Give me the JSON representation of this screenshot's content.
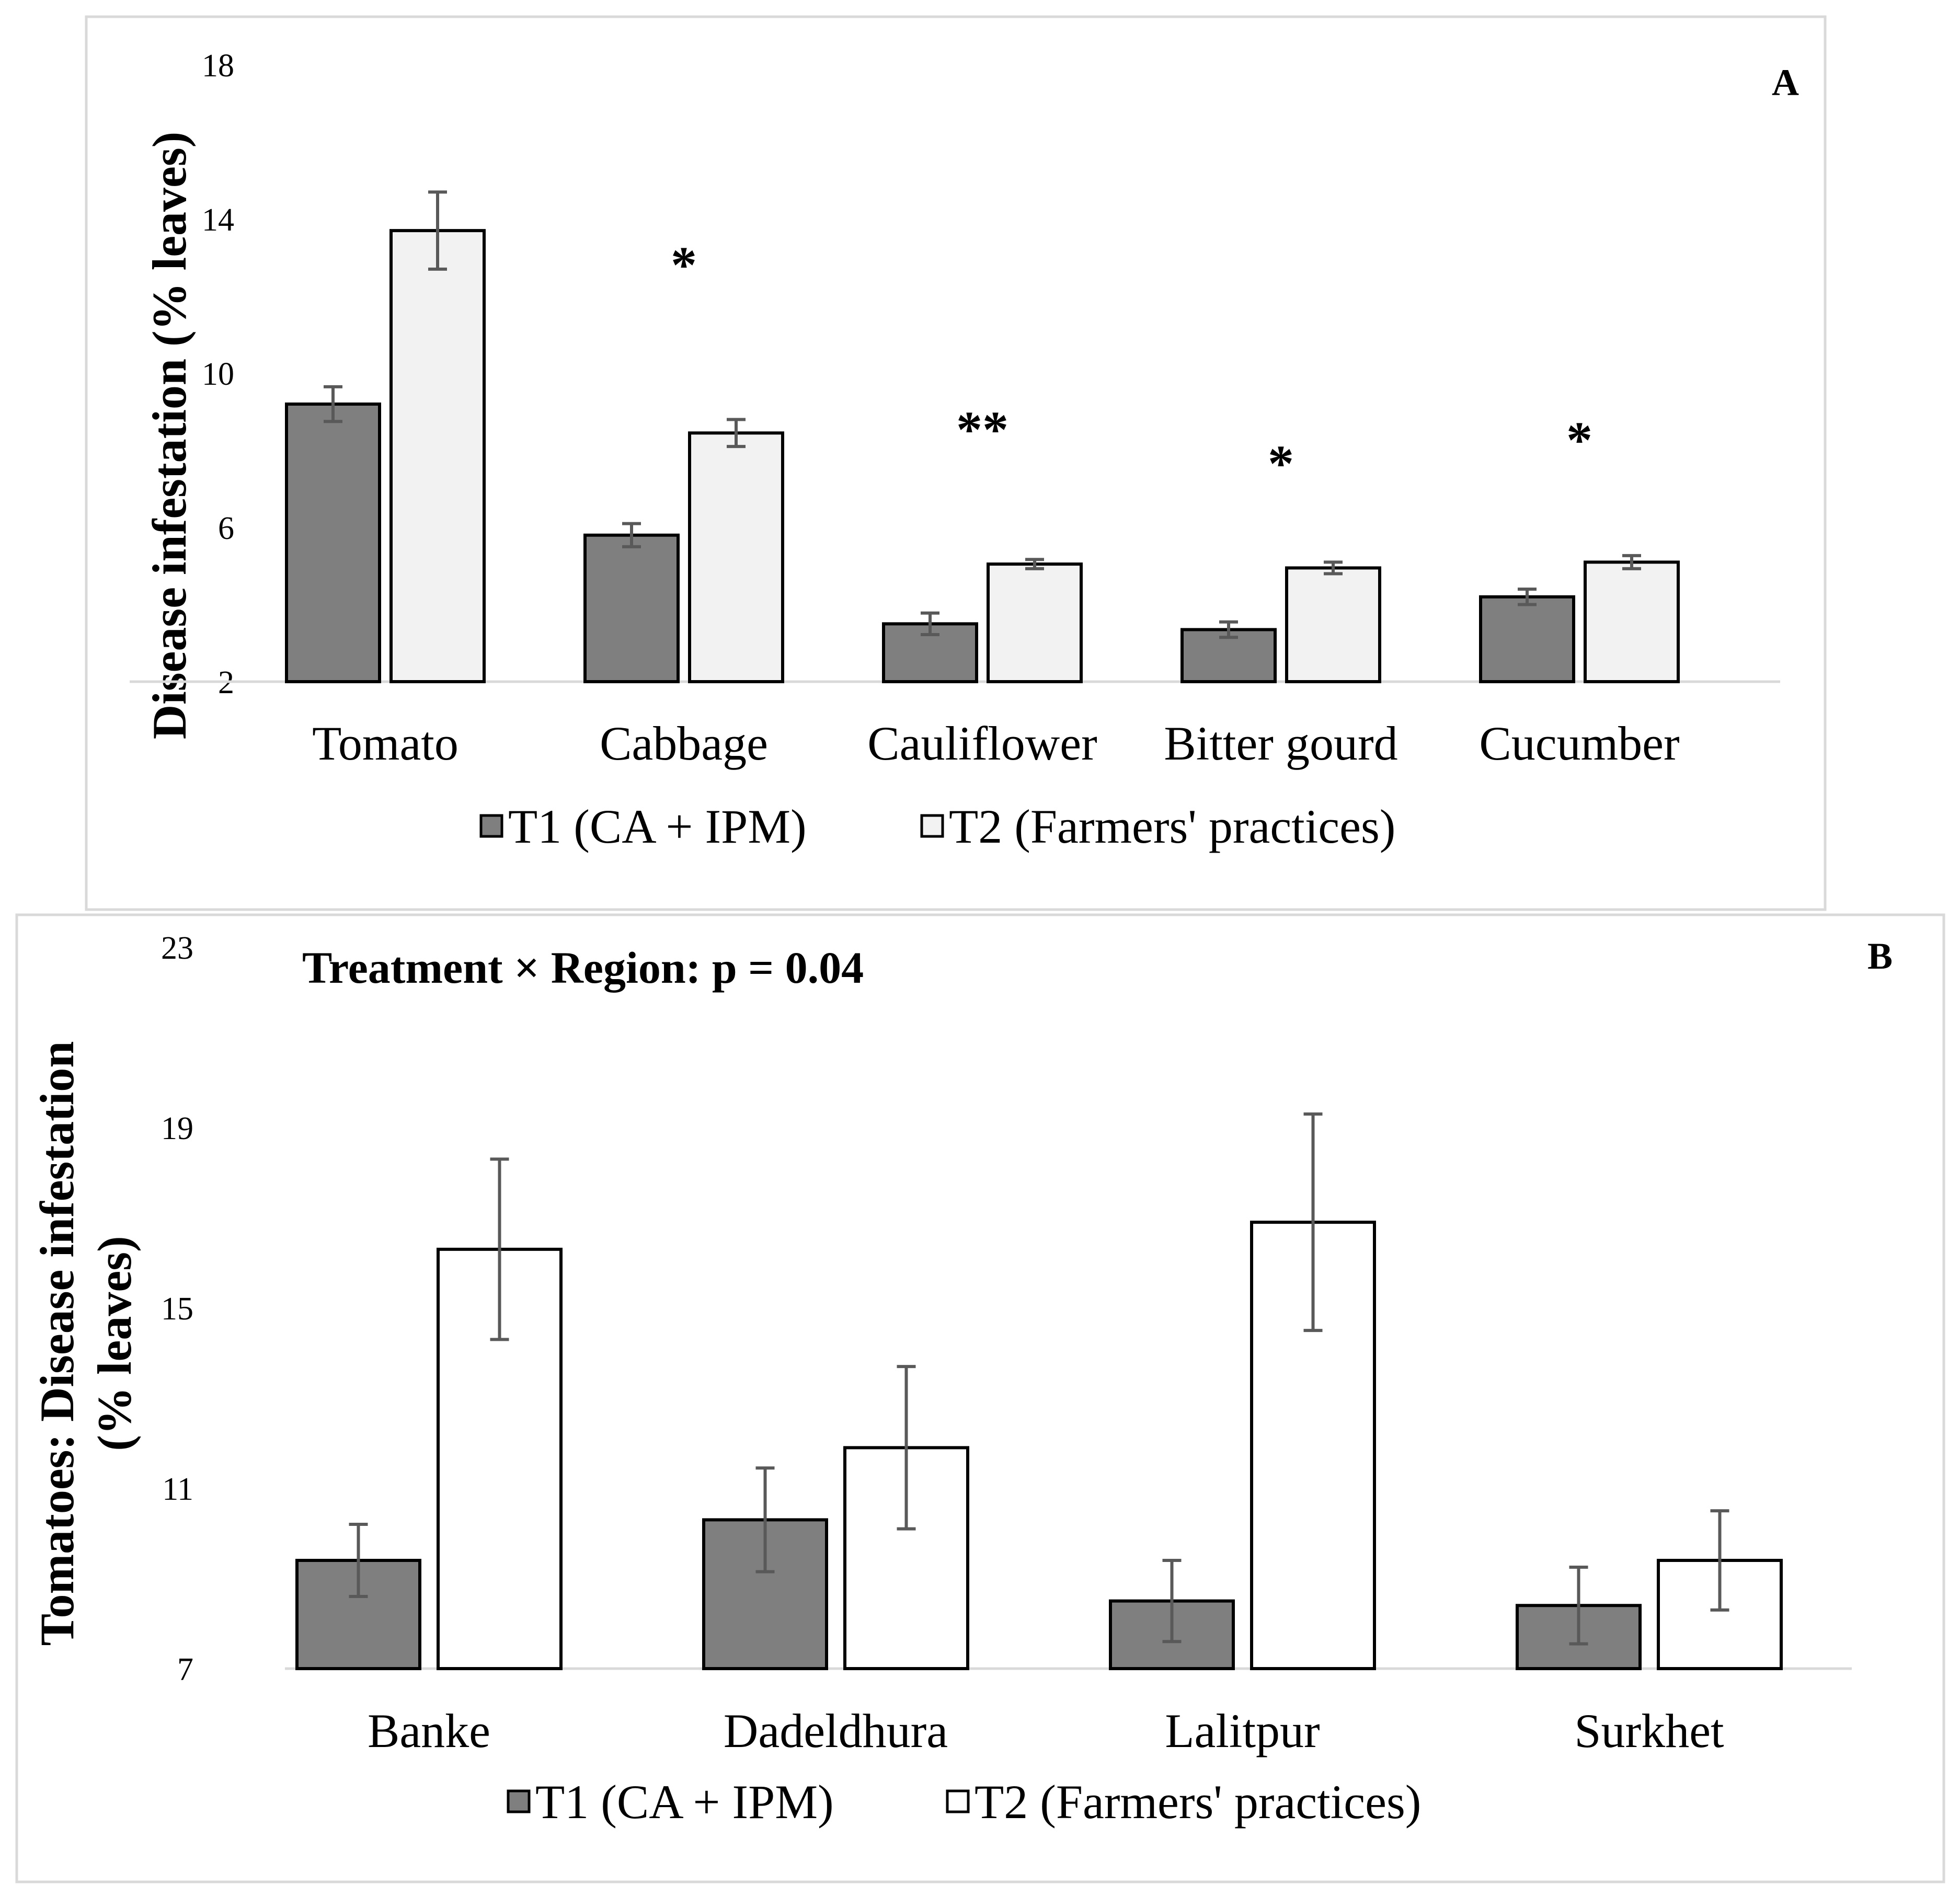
{
  "chart_data": [
    {
      "panel": "A",
      "type": "bar",
      "ylabel": "Disease infestation (% leaves)",
      "ylim": [
        2,
        18
      ],
      "yticks": [
        "2",
        "6",
        "10",
        "14",
        "18"
      ],
      "categories": [
        "Tomato",
        "Cabbage",
        "Cauliflower",
        "Bitter gourd",
        "Cucumber"
      ],
      "series": [
        {
          "name": "T1 (CA + IPM)",
          "color": "#7f7f7f",
          "values": [
            9.2,
            5.8,
            3.5,
            3.35,
            4.2
          ],
          "errors": [
            0.45,
            0.3,
            0.28,
            0.2,
            0.2
          ]
        },
        {
          "name": "T2 (Farmers' practices)",
          "color": "#f2f2f2",
          "values": [
            13.7,
            8.45,
            5.05,
            4.95,
            5.1
          ],
          "errors": [
            1.0,
            0.35,
            0.12,
            0.15,
            0.17
          ]
        }
      ],
      "significance": [
        "",
        "*",
        "**",
        "*",
        "*"
      ],
      "legend": [
        "T1 (CA + IPM)",
        "T2 (Farmers' practices)"
      ],
      "grid": false
    },
    {
      "panel": "B",
      "type": "bar",
      "ylabel_line1": "Tomatoes: Disease infestation",
      "ylabel_line2": "(% leaves)",
      "annotation": "Treatment × Region: p = 0.04",
      "ylim": [
        7,
        23
      ],
      "yticks": [
        "7",
        "11",
        "15",
        "19",
        "23"
      ],
      "categories": [
        "Banke",
        "Dadeldhura",
        "Lalitpur",
        "Surkhet"
      ],
      "series": [
        {
          "name": "T1 (CA + IPM)",
          "color": "#7f7f7f",
          "values": [
            9.4,
            10.3,
            8.5,
            8.4
          ],
          "errors": [
            0.8,
            1.15,
            0.9,
            0.85
          ]
        },
        {
          "name": "T2 (Farmers' practices)",
          "color": "#ffffff",
          "values": [
            16.3,
            11.9,
            16.9,
            9.4
          ],
          "errors": [
            2.0,
            1.8,
            2.4,
            1.1
          ]
        }
      ],
      "legend": [
        "T1 (CA + IPM)",
        "T2 (Farmers' practices)"
      ],
      "grid": false
    }
  ]
}
